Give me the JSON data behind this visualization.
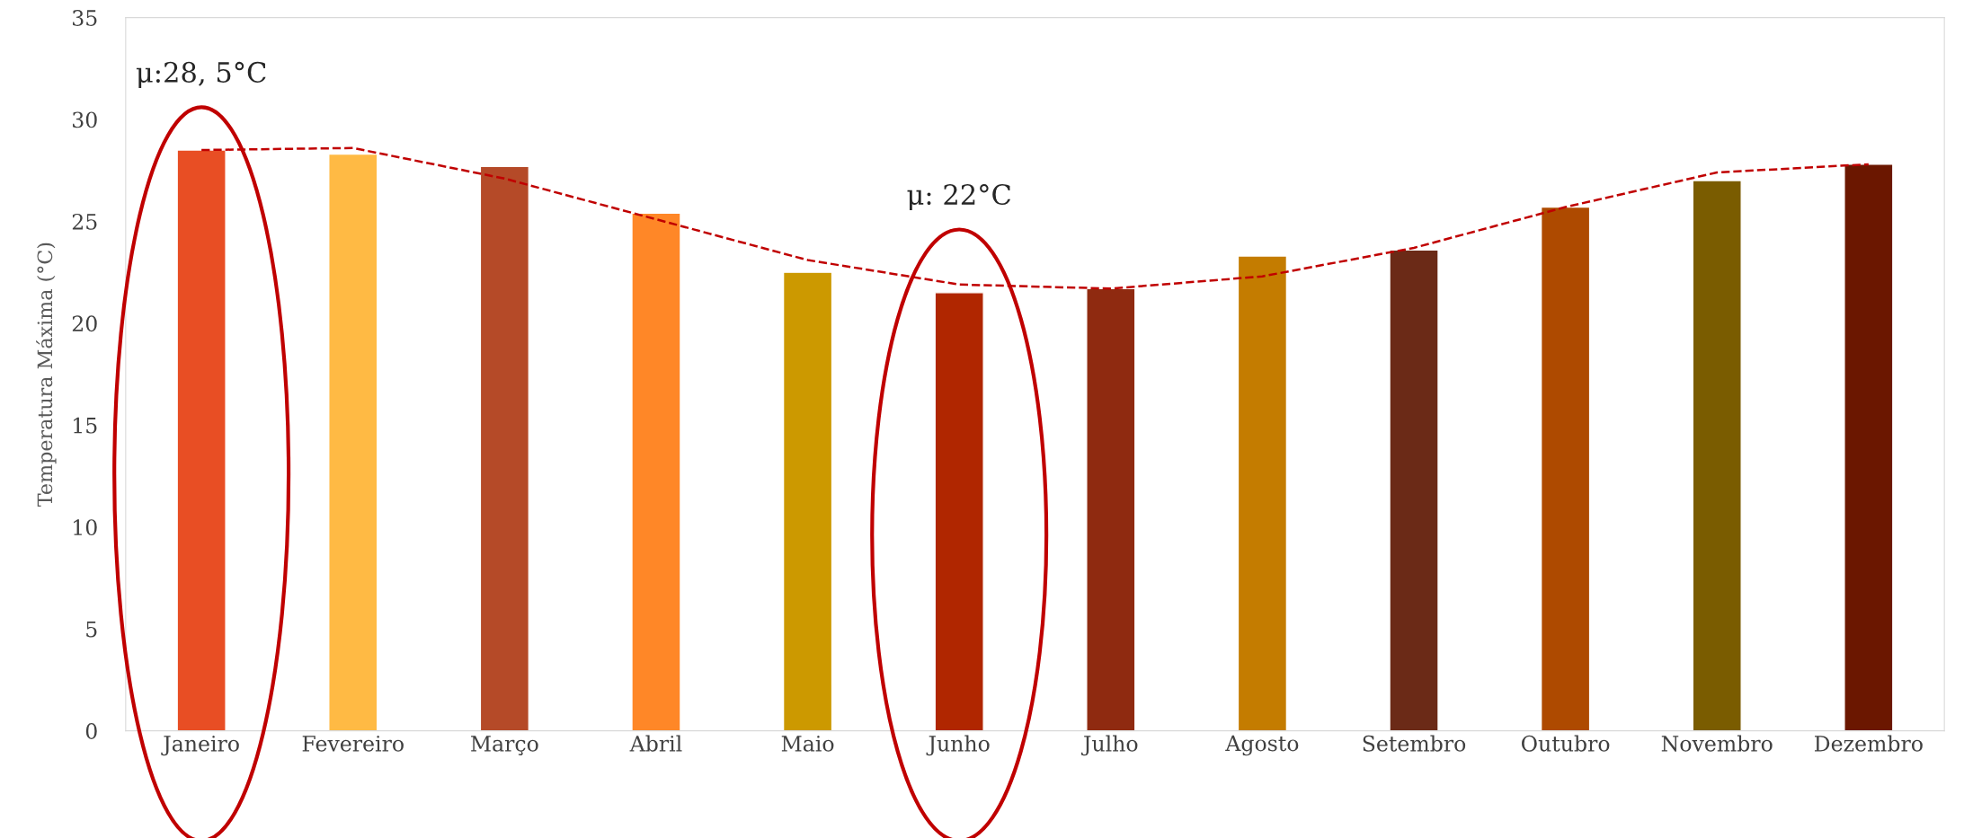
{
  "chart_data": {
    "type": "bar",
    "ylabel": "Temperatura Máxima (°C)",
    "categories": [
      "Janeiro",
      "Fevereiro",
      "Março",
      "Abril",
      "Maio",
      "Junho",
      "Julho",
      "Agosto",
      "Setembro",
      "Outubro",
      "Novembro",
      "Dezembro"
    ],
    "series": [
      {
        "colors": [
          "#e84e24",
          "#ffba44",
          "#b54a28",
          "#ff8727",
          "#cc9900",
          "#b02600",
          "#8f2a10",
          "#c47c00",
          "#6b2a17",
          "#ae4a00",
          "#7a5c00",
          "#6b1700"
        ],
        "values": [
          28.5,
          28.3,
          27.7,
          25.4,
          22.5,
          21.5,
          21.7,
          23.3,
          23.6,
          25.7,
          27.0,
          27.8
        ]
      },
      {
        "type": "line",
        "color": "#c00000",
        "line_style": "dashed",
        "values": [
          28.5,
          28.6,
          27.1,
          25.1,
          23.1,
          21.9,
          21.7,
          22.3,
          23.7,
          25.7,
          27.4,
          27.8
        ]
      }
    ],
    "ylim": [
      0,
      35
    ],
    "yticks": [
      0,
      5,
      10,
      15,
      20,
      25,
      30,
      35
    ],
    "grid": false,
    "legend": false,
    "annotations": [
      "μ:28, 5°C",
      "μ: 22°C"
    ]
  }
}
